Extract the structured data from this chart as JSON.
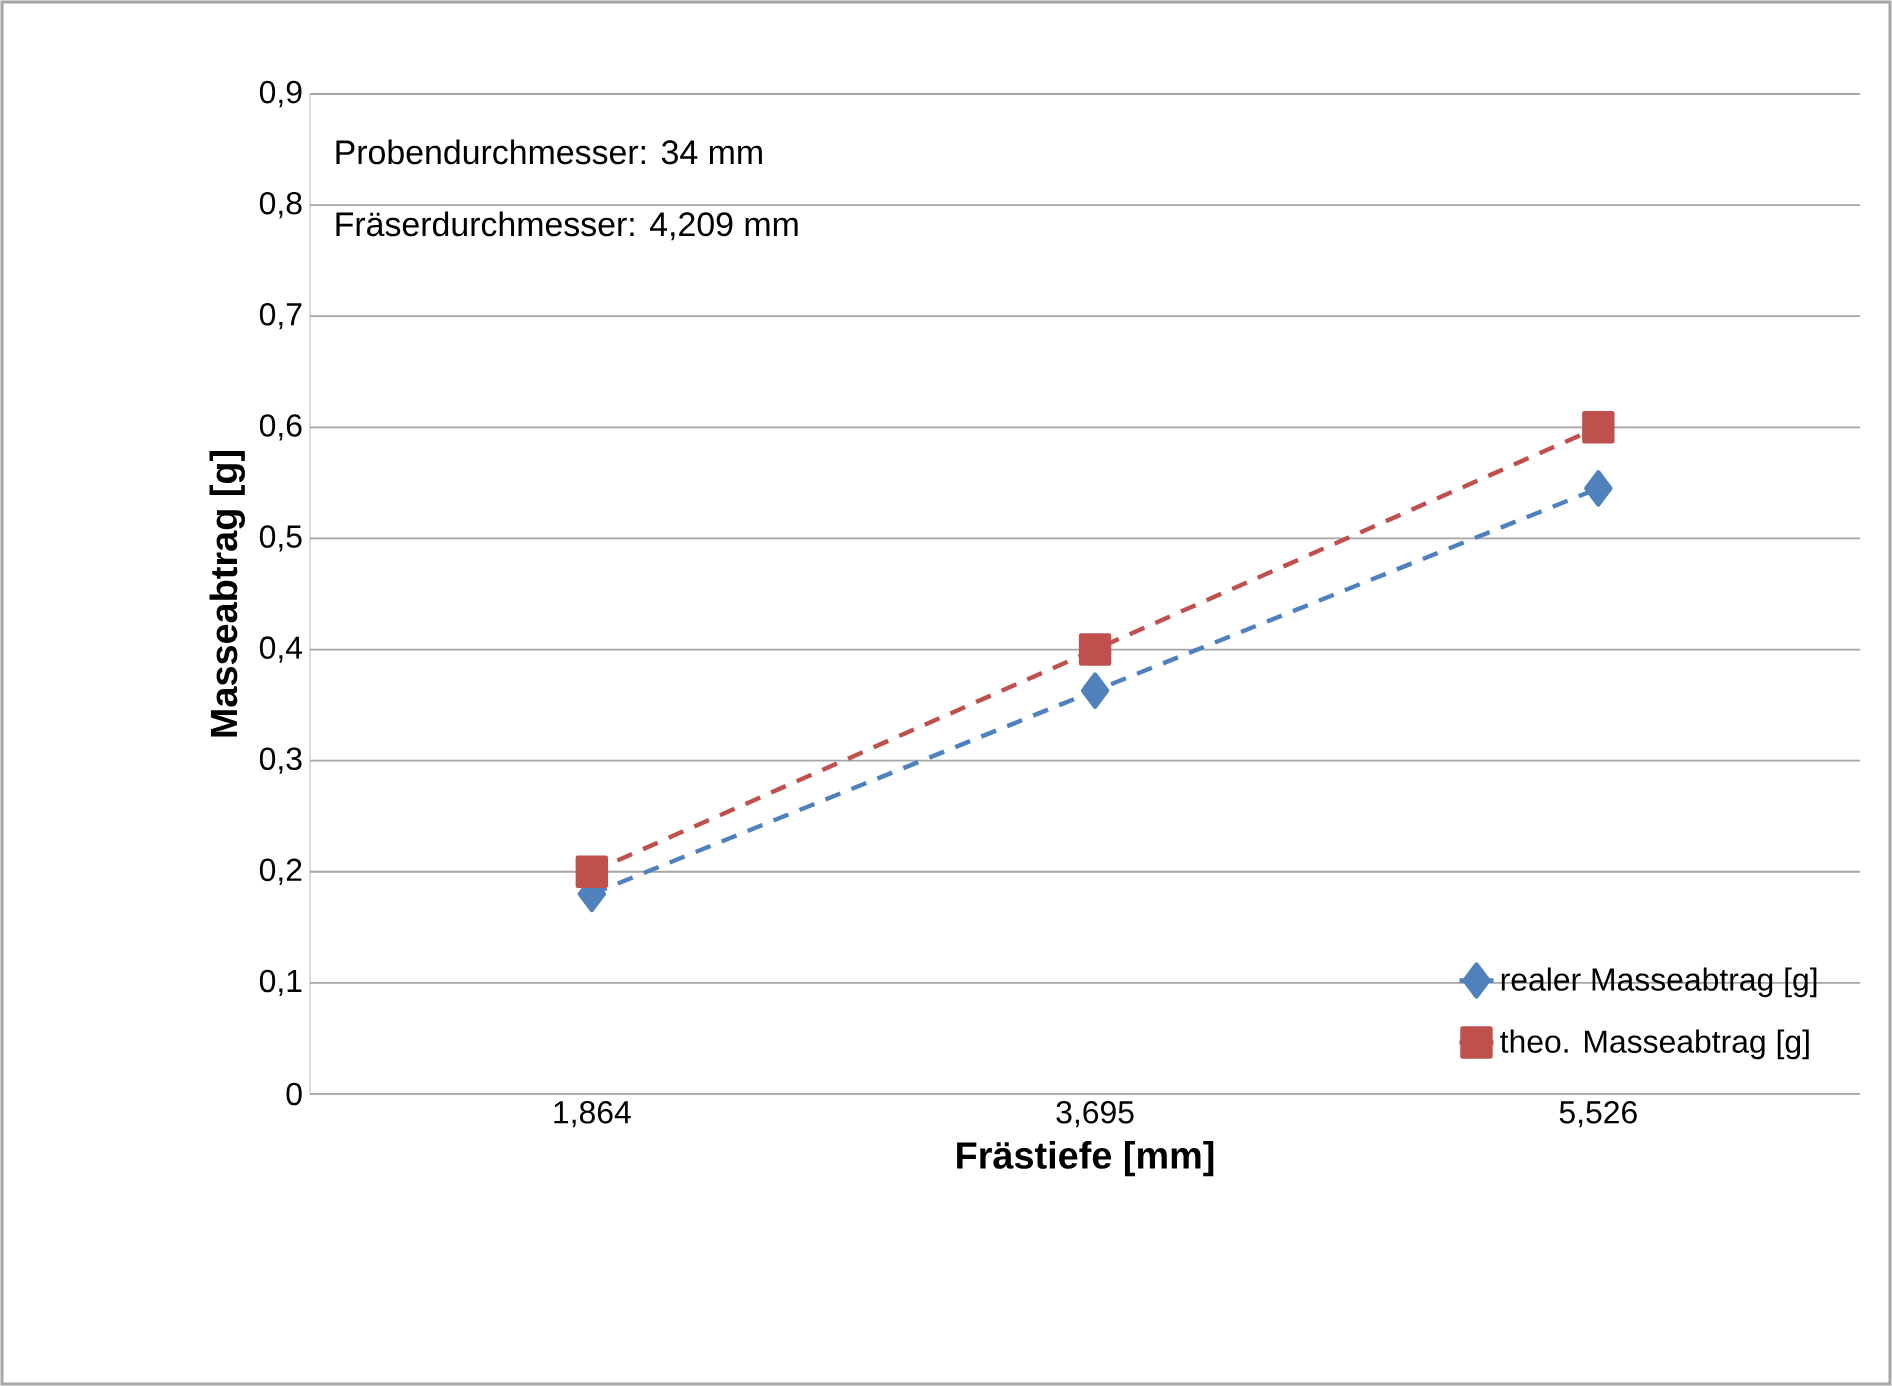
{
  "chart_data": {
    "type": "line",
    "xlabel": "Frästiefe [mm]",
    "ylabel": "Masseabtrag [g]",
    "categories": [
      "1,864",
      "3,695",
      "5,526"
    ],
    "series": [
      {
        "name": "realer Masseabtrag [g]",
        "color": "#4f81bd",
        "marker": "diamond",
        "values": [
          0.18,
          0.363,
          0.545
        ]
      },
      {
        "name": "theo. Masseabtrag [g]",
        "color": "#c0504d",
        "marker": "square",
        "values": [
          0.2,
          0.4,
          0.6
        ]
      }
    ],
    "ylim": [
      0,
      0.9
    ],
    "yticks": [
      0,
      {
        "value": 0.1,
        "label": "0,1"
      },
      {
        "value": 0.2,
        "label": "0,2"
      },
      {
        "value": 0.3,
        "label": "0,3"
      },
      {
        "value": 0.4,
        "label": "0,4"
      },
      {
        "value": 0.5,
        "label": "0,5"
      },
      {
        "value": 0.6,
        "label": "0,6"
      },
      {
        "value": 0.7,
        "label": "0,7"
      },
      {
        "value": 0.8,
        "label": "0,8"
      },
      {
        "value": 0.9,
        "label": "0,9"
      }
    ],
    "grid": "y",
    "legend": "bottom right",
    "line_style": "dashed",
    "annotations": [
      "Probendurchmesser: 34 mm",
      "Fräserdurchmesser: 4,209 mm"
    ]
  }
}
